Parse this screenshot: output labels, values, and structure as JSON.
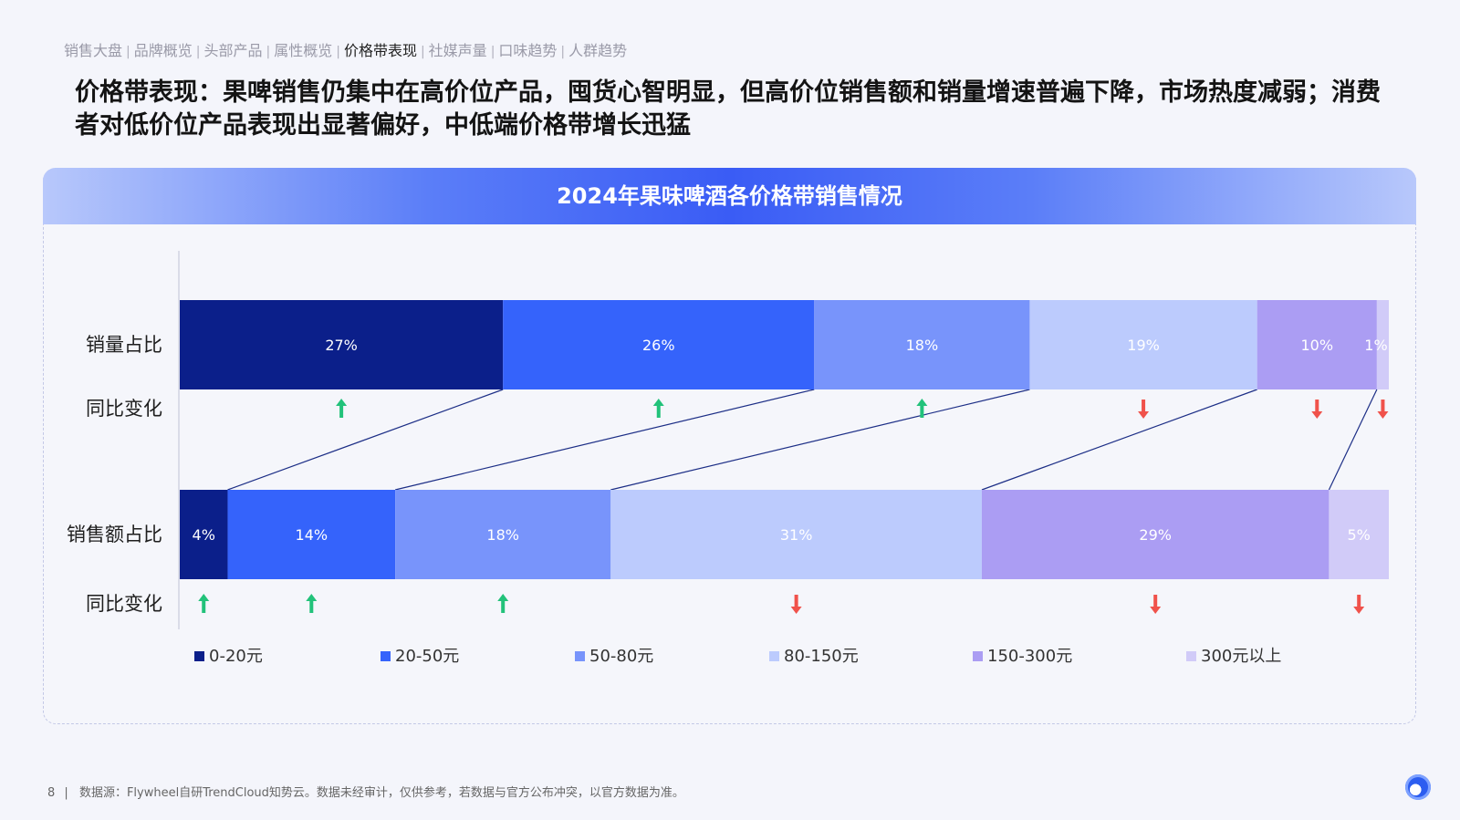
{
  "nav": {
    "items": [
      "销售大盘",
      "品牌概览",
      "头部产品",
      "属性概览",
      "价格带表现",
      "社媒声量",
      "口味趋势",
      "人群趋势"
    ],
    "active_index": 4,
    "separator": "|"
  },
  "headline": "价格带表现：果啤销售仍集中在高价位产品，囤货心智明显，但高价位销售额和销量增速普遍下降，市场热度减弱；消费者对低价位产品表现出显著偏好，中低端价格带增长迅猛",
  "panel": {
    "title": "2024年果味啤酒各价格带销售情况"
  },
  "chart_data": {
    "type": "bar",
    "orientation": "horizontal-stacked-100",
    "title": "2024年果味啤酒各价格带销售情况",
    "categories": [
      "0-20元",
      "20-50元",
      "50-80元",
      "80-150元",
      "150-300元",
      "300元以上"
    ],
    "colors": [
      "#0b1f8a",
      "#3563fb",
      "#7894fb",
      "#bccbfd",
      "#ab9df3",
      "#d1cbf8"
    ],
    "label_colors": [
      "#ffffff",
      "#ffffff",
      "#ffffff",
      "#ffffff",
      "#ffffff",
      "#ffffff"
    ],
    "series": [
      {
        "name": "销量占比",
        "values": [
          27,
          26,
          18,
          19,
          10,
          1
        ],
        "labels": [
          "27%",
          "26%",
          "18%",
          "19%",
          "10%",
          "1%"
        ],
        "yoy_label": "同比变化",
        "yoy": [
          "up",
          "up",
          "up",
          "down",
          "down",
          "down"
        ]
      },
      {
        "name": "销售额占比",
        "values": [
          4,
          14,
          18,
          31,
          29,
          5
        ],
        "labels": [
          "4%",
          "14%",
          "18%",
          "31%",
          "29%",
          "5%"
        ],
        "yoy_label": "同比变化",
        "yoy": [
          "up",
          "up",
          "up",
          "down",
          "down",
          "down"
        ]
      }
    ],
    "arrow_colors": {
      "up": "#22c27a",
      "down": "#f0524b"
    },
    "legend_position": "bottom",
    "connector_color": "#1c2e86",
    "grid": false
  },
  "footer": {
    "page": "8",
    "separator": "|",
    "source": "数据源：Flywheel自研TrendCloud知势云。数据未经审计，仅供参考，若数据与官方公布冲突，以官方数据为准。"
  }
}
